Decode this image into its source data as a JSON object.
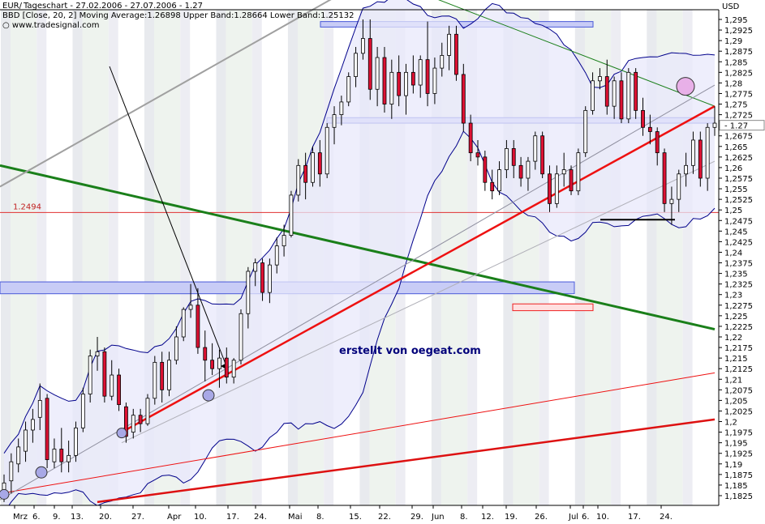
{
  "header": {
    "line1_prefix": "EUR/",
    "line1": "Tageschart - 27.02.2006 - 27.07.2006 - 1.27",
    "line2": "BBD [Close, 20, 2] Moving Average:1.26898 Upper Band:1.28664 Lower Band:1.25132",
    "line3": "www.tradesignal.com"
  },
  "axis": {
    "unit": "USD",
    "current_price": "1.27",
    "hline_label": "1.2494",
    "y_ticks": [
      "1,295",
      "1,2925",
      "1,29",
      "1,2875",
      "1,285",
      "1,2825",
      "1,28",
      "1,2775",
      "1,275",
      "1,2725",
      "1,27",
      "1,2675",
      "1,265",
      "1,2625",
      "1,26",
      "1,2575",
      "1,255",
      "1,2525",
      "1,25",
      "1,2475",
      "1,245",
      "1,2425",
      "1,24",
      "1,2375",
      "1,235",
      "1,2325",
      "1,23",
      "1,2275",
      "1,225",
      "1,2225",
      "1,22",
      "1,2175",
      "1,215",
      "1,2125",
      "1,21",
      "1,2075",
      "1,205",
      "1,2025",
      "1,2",
      "1,1975",
      "1,195",
      "1,1925",
      "1,19",
      "1,1875",
      "1,185",
      "1,1825"
    ],
    "x_labels": [
      "Mrz",
      "6.",
      "9.",
      "13.",
      "20.",
      "27.",
      "Apr",
      "10.",
      "17.",
      "24.",
      "Mai",
      "8.",
      "15.",
      "22.",
      "29.",
      "Jun",
      "8.",
      "12.",
      "19.",
      "26.",
      "Jul",
      "6.",
      "10.",
      "17.",
      "24."
    ]
  },
  "annotation": "erstellt von oegeat.com",
  "colors": {
    "bull": "#ffffff",
    "bear": "#dd1133",
    "band": "#00008b",
    "support": "#ee1111",
    "green_trend": "#1a7f1a",
    "gray_trend": "#a0a0a0"
  },
  "chart_data": {
    "type": "candlestick",
    "title": "EUR/USD Tageschart - 27.02.2006 - 27.07.2006",
    "indicator": "Bollinger Bands [Close, 20, 2]",
    "ylim": [
      1.181,
      1.3005
    ],
    "horizontal_line": 1.2494,
    "candles": [
      {
        "o": 1.182,
        "h": 1.1875,
        "l": 1.181,
        "c": 1.1855
      },
      {
        "o": 1.186,
        "h": 1.1925,
        "l": 1.183,
        "c": 1.1905
      },
      {
        "o": 1.19,
        "h": 1.196,
        "l": 1.188,
        "c": 1.194
      },
      {
        "o": 1.193,
        "h": 1.2,
        "l": 1.1905,
        "c": 1.198
      },
      {
        "o": 1.198,
        "h": 1.203,
        "l": 1.195,
        "c": 1.2005
      },
      {
        "o": 1.201,
        "h": 1.209,
        "l": 1.198,
        "c": 1.205
      },
      {
        "o": 1.2055,
        "h": 1.2065,
        "l": 1.189,
        "c": 1.191
      },
      {
        "o": 1.1905,
        "h": 1.196,
        "l": 1.189,
        "c": 1.1935
      },
      {
        "o": 1.1935,
        "h": 1.1985,
        "l": 1.188,
        "c": 1.1905
      },
      {
        "o": 1.1905,
        "h": 1.1955,
        "l": 1.188,
        "c": 1.192
      },
      {
        "o": 1.192,
        "h": 1.2,
        "l": 1.1905,
        "c": 1.1985
      },
      {
        "o": 1.1985,
        "h": 1.208,
        "l": 1.1975,
        "c": 1.2065
      },
      {
        "o": 1.2065,
        "h": 1.217,
        "l": 1.2045,
        "c": 1.2155
      },
      {
        "o": 1.2155,
        "h": 1.22,
        "l": 1.212,
        "c": 1.2165
      },
      {
        "o": 1.2165,
        "h": 1.2175,
        "l": 1.2045,
        "c": 1.206
      },
      {
        "o": 1.206,
        "h": 1.2145,
        "l": 1.205,
        "c": 1.211
      },
      {
        "o": 1.211,
        "h": 1.2125,
        "l": 1.2025,
        "c": 1.204
      },
      {
        "o": 1.2035,
        "h": 1.2045,
        "l": 1.195,
        "c": 1.1965
      },
      {
        "o": 1.1975,
        "h": 1.203,
        "l": 1.196,
        "c": 1.2015
      },
      {
        "o": 1.2015,
        "h": 1.203,
        "l": 1.1975,
        "c": 1.1995
      },
      {
        "o": 1.1995,
        "h": 1.2065,
        "l": 1.199,
        "c": 1.2055
      },
      {
        "o": 1.2055,
        "h": 1.2155,
        "l": 1.204,
        "c": 1.214
      },
      {
        "o": 1.214,
        "h": 1.2165,
        "l": 1.2045,
        "c": 1.2075
      },
      {
        "o": 1.2075,
        "h": 1.2165,
        "l": 1.206,
        "c": 1.2145
      },
      {
        "o": 1.2145,
        "h": 1.2225,
        "l": 1.2135,
        "c": 1.22
      },
      {
        "o": 1.22,
        "h": 1.227,
        "l": 1.219,
        "c": 1.2265
      },
      {
        "o": 1.2265,
        "h": 1.2325,
        "l": 1.2245,
        "c": 1.2275
      },
      {
        "o": 1.2275,
        "h": 1.2315,
        "l": 1.216,
        "c": 1.2175
      },
      {
        "o": 1.2175,
        "h": 1.2215,
        "l": 1.2095,
        "c": 1.2145
      },
      {
        "o": 1.2145,
        "h": 1.2185,
        "l": 1.211,
        "c": 1.2125
      },
      {
        "o": 1.2125,
        "h": 1.217,
        "l": 1.208,
        "c": 1.215
      },
      {
        "o": 1.215,
        "h": 1.2175,
        "l": 1.209,
        "c": 1.2105
      },
      {
        "o": 1.2105,
        "h": 1.215,
        "l": 1.209,
        "c": 1.2145
      },
      {
        "o": 1.2145,
        "h": 1.2265,
        "l": 1.2135,
        "c": 1.2255
      },
      {
        "o": 1.2255,
        "h": 1.2365,
        "l": 1.222,
        "c": 1.2355
      },
      {
        "o": 1.2355,
        "h": 1.2385,
        "l": 1.232,
        "c": 1.2375
      },
      {
        "o": 1.2375,
        "h": 1.2385,
        "l": 1.2285,
        "c": 1.2305
      },
      {
        "o": 1.2305,
        "h": 1.2385,
        "l": 1.228,
        "c": 1.237
      },
      {
        "o": 1.237,
        "h": 1.2435,
        "l": 1.235,
        "c": 1.2415
      },
      {
        "o": 1.2415,
        "h": 1.2465,
        "l": 1.239,
        "c": 1.244
      },
      {
        "o": 1.244,
        "h": 1.2545,
        "l": 1.2435,
        "c": 1.2535
      },
      {
        "o": 1.2535,
        "h": 1.262,
        "l": 1.252,
        "c": 1.2605
      },
      {
        "o": 1.2605,
        "h": 1.2635,
        "l": 1.2525,
        "c": 1.2565
      },
      {
        "o": 1.2565,
        "h": 1.265,
        "l": 1.2555,
        "c": 1.2635
      },
      {
        "o": 1.2635,
        "h": 1.2665,
        "l": 1.2555,
        "c": 1.2585
      },
      {
        "o": 1.2585,
        "h": 1.2705,
        "l": 1.2575,
        "c": 1.2695
      },
      {
        "o": 1.2695,
        "h": 1.2745,
        "l": 1.2655,
        "c": 1.2725
      },
      {
        "o": 1.2725,
        "h": 1.277,
        "l": 1.27,
        "c": 1.2755
      },
      {
        "o": 1.2755,
        "h": 1.2825,
        "l": 1.2745,
        "c": 1.2815
      },
      {
        "o": 1.2815,
        "h": 1.2885,
        "l": 1.279,
        "c": 1.287
      },
      {
        "o": 1.287,
        "h": 1.295,
        "l": 1.2855,
        "c": 1.2905
      },
      {
        "o": 1.2905,
        "h": 1.295,
        "l": 1.276,
        "c": 1.2785
      },
      {
        "o": 1.2785,
        "h": 1.2885,
        "l": 1.2745,
        "c": 1.286
      },
      {
        "o": 1.286,
        "h": 1.2885,
        "l": 1.273,
        "c": 1.275
      },
      {
        "o": 1.275,
        "h": 1.2855,
        "l": 1.2715,
        "c": 1.2825
      },
      {
        "o": 1.2825,
        "h": 1.2865,
        "l": 1.2745,
        "c": 1.277
      },
      {
        "o": 1.277,
        "h": 1.2845,
        "l": 1.2725,
        "c": 1.2825
      },
      {
        "o": 1.2825,
        "h": 1.2865,
        "l": 1.2775,
        "c": 1.2795
      },
      {
        "o": 1.2795,
        "h": 1.2865,
        "l": 1.2765,
        "c": 1.2855
      },
      {
        "o": 1.2855,
        "h": 1.2945,
        "l": 1.2745,
        "c": 1.2775
      },
      {
        "o": 1.2775,
        "h": 1.286,
        "l": 1.275,
        "c": 1.2835
      },
      {
        "o": 1.2835,
        "h": 1.2895,
        "l": 1.2815,
        "c": 1.2865
      },
      {
        "o": 1.2865,
        "h": 1.2935,
        "l": 1.283,
        "c": 1.2915
      },
      {
        "o": 1.2915,
        "h": 1.2935,
        "l": 1.2805,
        "c": 1.282
      },
      {
        "o": 1.282,
        "h": 1.2845,
        "l": 1.2685,
        "c": 1.2705
      },
      {
        "o": 1.2705,
        "h": 1.2725,
        "l": 1.2615,
        "c": 1.2635
      },
      {
        "o": 1.2635,
        "h": 1.2665,
        "l": 1.2605,
        "c": 1.2625
      },
      {
        "o": 1.2625,
        "h": 1.264,
        "l": 1.2545,
        "c": 1.2565
      },
      {
        "o": 1.2565,
        "h": 1.2595,
        "l": 1.2525,
        "c": 1.2545
      },
      {
        "o": 1.2545,
        "h": 1.2615,
        "l": 1.2535,
        "c": 1.2595
      },
      {
        "o": 1.2595,
        "h": 1.2665,
        "l": 1.2575,
        "c": 1.2645
      },
      {
        "o": 1.2645,
        "h": 1.2665,
        "l": 1.2575,
        "c": 1.2605
      },
      {
        "o": 1.2605,
        "h": 1.2625,
        "l": 1.2555,
        "c": 1.2575
      },
      {
        "o": 1.2575,
        "h": 1.2625,
        "l": 1.2545,
        "c": 1.2615
      },
      {
        "o": 1.2615,
        "h": 1.2685,
        "l": 1.2595,
        "c": 1.2675
      },
      {
        "o": 1.2675,
        "h": 1.2685,
        "l": 1.2575,
        "c": 1.2585
      },
      {
        "o": 1.2585,
        "h": 1.2605,
        "l": 1.2495,
        "c": 1.2515
      },
      {
        "o": 1.2515,
        "h": 1.2605,
        "l": 1.2505,
        "c": 1.2585
      },
      {
        "o": 1.2585,
        "h": 1.2635,
        "l": 1.2555,
        "c": 1.2595
      },
      {
        "o": 1.2595,
        "h": 1.2605,
        "l": 1.2535,
        "c": 1.2545
      },
      {
        "o": 1.2545,
        "h": 1.2645,
        "l": 1.2535,
        "c": 1.2635
      },
      {
        "o": 1.2635,
        "h": 1.2745,
        "l": 1.2625,
        "c": 1.2735
      },
      {
        "o": 1.2735,
        "h": 1.2825,
        "l": 1.2725,
        "c": 1.2805
      },
      {
        "o": 1.2805,
        "h": 1.2835,
        "l": 1.2785,
        "c": 1.2815
      },
      {
        "o": 1.2815,
        "h": 1.2855,
        "l": 1.2725,
        "c": 1.2745
      },
      {
        "o": 1.2745,
        "h": 1.2815,
        "l": 1.2715,
        "c": 1.2805
      },
      {
        "o": 1.2805,
        "h": 1.2825,
        "l": 1.2705,
        "c": 1.2715
      },
      {
        "o": 1.2715,
        "h": 1.2835,
        "l": 1.2705,
        "c": 1.2825
      },
      {
        "o": 1.2825,
        "h": 1.2835,
        "l": 1.2715,
        "c": 1.2735
      },
      {
        "o": 1.2735,
        "h": 1.2765,
        "l": 1.2675,
        "c": 1.2695
      },
      {
        "o": 1.2695,
        "h": 1.2725,
        "l": 1.2655,
        "c": 1.2685
      },
      {
        "o": 1.2685,
        "h": 1.2695,
        "l": 1.2605,
        "c": 1.2635
      },
      {
        "o": 1.2635,
        "h": 1.2645,
        "l": 1.2495,
        "c": 1.2515
      },
      {
        "o": 1.2515,
        "h": 1.2555,
        "l": 1.2465,
        "c": 1.2525
      },
      {
        "o": 1.2525,
        "h": 1.2595,
        "l": 1.2495,
        "c": 1.2585
      },
      {
        "o": 1.2585,
        "h": 1.2635,
        "l": 1.2555,
        "c": 1.2605
      },
      {
        "o": 1.2605,
        "h": 1.2685,
        "l": 1.2585,
        "c": 1.2665
      },
      {
        "o": 1.2665,
        "h": 1.2685,
        "l": 1.2555,
        "c": 1.2575
      },
      {
        "o": 1.2575,
        "h": 1.2705,
        "l": 1.2545,
        "c": 1.2695
      },
      {
        "o": 1.2695,
        "h": 1.2745,
        "l": 1.2675,
        "c": 1.2705
      }
    ]
  }
}
